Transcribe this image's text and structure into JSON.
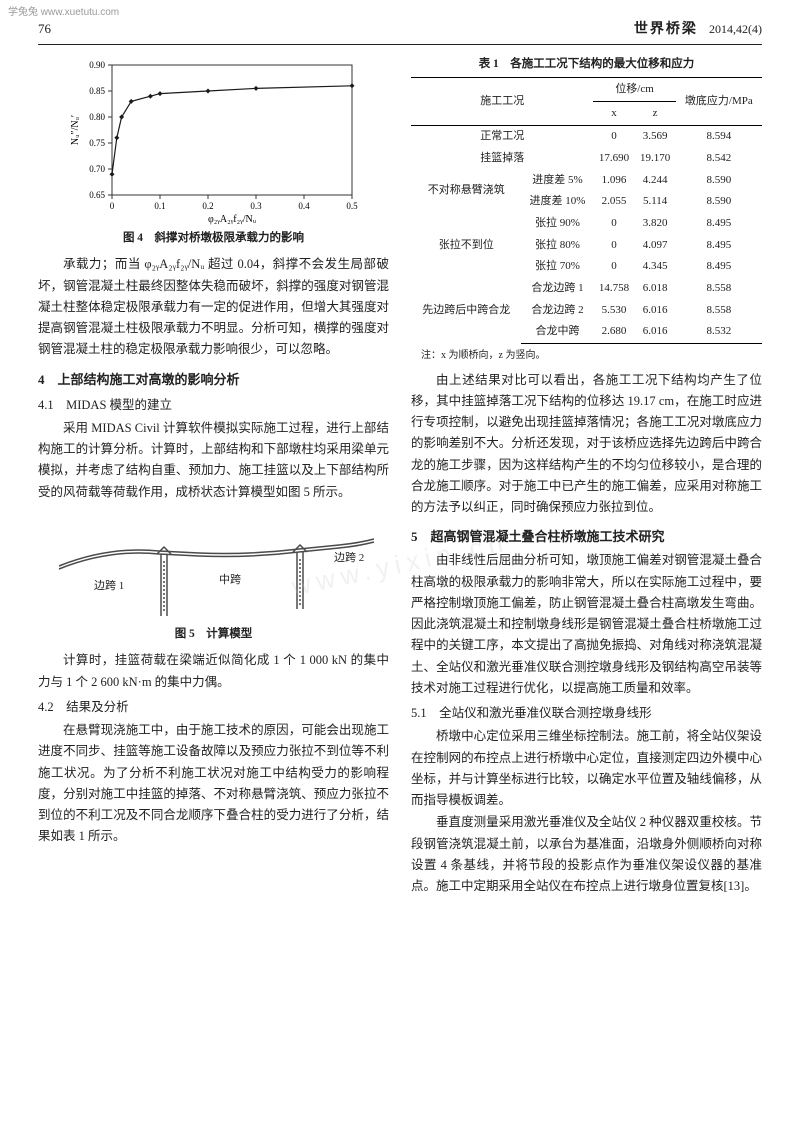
{
  "watermark_top": "学兔兔 www.xuetutu.com",
  "watermark_center": "www.yixin.cn",
  "header": {
    "page": "76",
    "journal": "世界桥梁",
    "issue": "2014,42(4)"
  },
  "fig4": {
    "caption": "图 4　斜撑对桥墩极限承载力的影响",
    "type": "line",
    "x_values": [
      0,
      0.01,
      0.02,
      0.04,
      0.08,
      0.1,
      0.2,
      0.3,
      0.5
    ],
    "y_values": [
      0.69,
      0.76,
      0.8,
      0.83,
      0.84,
      0.845,
      0.85,
      0.855,
      0.86
    ],
    "xlim": [
      0,
      0.5
    ],
    "ylim": [
      0.65,
      0.9
    ],
    "xticks": [
      0,
      0.1,
      0.2,
      0.3,
      0.4,
      0.5
    ],
    "yticks": [
      0.65,
      0.7,
      0.75,
      0.8,
      0.85,
      0.9
    ],
    "line_color": "#1a1a1a",
    "marker": "diamond",
    "marker_size": 5,
    "background_color": "#ffffff",
    "border_color": "#333333",
    "ylabel": "Nᵤ″/Nᵤ′",
    "xlabel": "φ₂ᵧA₂ᵧf₂ᵧ/Nᵤ",
    "label_fontsize": 10
  },
  "left": {
    "p1": "承载力；而当 φ₂ᵧA₂ᵧf₂ᵧ/Nᵤ 超过 0.04，斜撑不会发生局部破坏，钢管混凝土柱最终因整体失稳而破坏，斜撑的强度对钢管混凝土柱整体稳定极限承载力有一定的促进作用，但增大其强度对提高钢管混凝土柱极限承载力不明显。分析可知，横撑的强度对钢管混凝土柱的稳定极限承载力影响很少，可以忽略。",
    "sec4": "4　上部结构施工对高墩的影响分析",
    "sec41": "4.1　MIDAS 模型的建立",
    "p2": "采用 MIDAS Civil 计算软件模拟实际施工过程，进行上部结构施工的计算分析。计算时，上部结构和下部墩柱均采用梁单元模拟，并考虑了结构自重、预加力、施工挂篮以及上下部结构所受的风荷载等荷载作用，成桥状态计算模型如图 5 所示。",
    "fig5": {
      "caption": "图 5　计算模型",
      "labels": {
        "left_span": "边跨 1",
        "mid_span": "中跨",
        "right_span": "边跨 2"
      },
      "line_color": "#4a4a4a",
      "pier_color": "#4a4a4a"
    },
    "p3": "计算时，挂篮荷载在梁端近似简化成 1 个 1 000 kN 的集中力与 1 个 2 600 kN·m 的集中力偶。",
    "sec42": "4.2　结果及分析",
    "p4": "在悬臂现浇施工中，由于施工技术的原因，可能会出现施工进度不同步、挂篮等施工设备故障以及预应力张拉不到位等不利施工状况。为了分析不利施工状况对施工中结构受力的影响程度，分别对施工中挂篮的掉落、不对称悬臂浇筑、预应力张拉不到位的不利工况及不同合龙顺序下叠合柱的受力进行了分析，结果如表 1 所示。"
  },
  "table1": {
    "caption": "表 1　各施工工况下结构的最大位移和应力",
    "head_cond": "施工工况",
    "head_disp": "位移/cm",
    "head_x": "x",
    "head_z": "z",
    "head_stress": "墩底应力/MPa",
    "rows": [
      {
        "g": "",
        "c": "正常工况",
        "x": "0",
        "z": "3.569",
        "s": "8.594"
      },
      {
        "g": "",
        "c": "挂篮掉落",
        "x": "17.690",
        "z": "19.170",
        "s": "8.542"
      },
      {
        "g": "不对称悬臂浇筑",
        "c": "进度差 5%",
        "x": "1.096",
        "z": "4.244",
        "s": "8.590"
      },
      {
        "g": "",
        "c": "进度差 10%",
        "x": "2.055",
        "z": "5.114",
        "s": "8.590"
      },
      {
        "g": "张拉不到位",
        "c": "张拉 90%",
        "x": "0",
        "z": "3.820",
        "s": "8.495"
      },
      {
        "g": "",
        "c": "张拉 80%",
        "x": "0",
        "z": "4.097",
        "s": "8.495"
      },
      {
        "g": "",
        "c": "张拉 70%",
        "x": "0",
        "z": "4.345",
        "s": "8.495"
      },
      {
        "g": "先边跨后中跨合龙",
        "c": "合龙边跨 1",
        "x": "14.758",
        "z": "6.018",
        "s": "8.558"
      },
      {
        "g": "",
        "c": "合龙边跨 2",
        "x": "5.530",
        "z": "6.016",
        "s": "8.558"
      },
      {
        "g": "",
        "c": "合龙中跨",
        "x": "2.680",
        "z": "6.016",
        "s": "8.532"
      }
    ],
    "note": "注：x 为顺桥向，z 为竖向。"
  },
  "right": {
    "p1": "由上述结果对比可以看出，各施工工况下结构均产生了位移，其中挂篮掉落工况下结构的位移达 19.17 cm，在施工时应进行专项控制，以避免出现挂篮掉落情况；各施工工况对墩底应力的影响差别不大。分析还发现，对于该桥应选择先边跨后中跨合龙的施工步骤，因为这样结构产生的不均匀位移较小，是合理的合龙施工顺序。对于施工中已产生的施工偏差，应采用对称施工的方法予以纠正，同时确保预应力张拉到位。",
    "sec5": "5　超高钢管混凝土叠合柱桥墩施工技术研究",
    "p2": "由非线性后屈曲分析可知，墩顶施工偏差对钢管混凝土叠合柱高墩的极限承载力的影响非常大，所以在实际施工过程中，要严格控制墩顶施工偏差，防止钢管混凝土叠合柱高墩发生弯曲。因此浇筑混凝土和控制墩身线形是钢管混凝土叠合柱桥墩施工过程中的关键工序，本文提出了高抛免振捣、对角线对称浇筑混凝土、全站仪和激光垂准仪联合测控墩身线形及钢结构高空吊装等技术对施工过程进行优化，以提高施工质量和效率。",
    "sec51": "5.1　全站仪和激光垂准仪联合测控墩身线形",
    "p3": "桥墩中心定位采用三维坐标控制法。施工前，将全站仪架设在控制网的布控点上进行桥墩中心定位，直接测定四边外模中心坐标，并与计算坐标进行比较，以确定水平位置及轴线偏移，从而指导模板调差。",
    "p4": "垂直度测量采用激光垂准仪及全站仪 2 种仪器双重校核。节段钢管浇筑混凝土前，以承台为基准面，沿墩身外侧顺桥向对称设置 4 条基线，并将节段的投影点作为垂准仪架设仪器的基准点。施工中定期采用全站仪在布控点上进行墩身位置复核[13]。"
  }
}
